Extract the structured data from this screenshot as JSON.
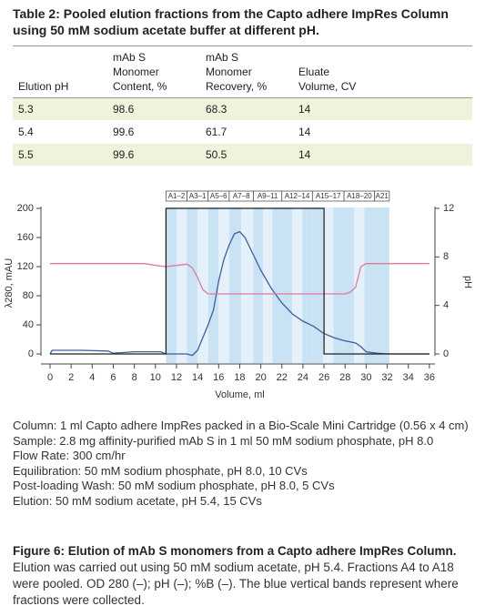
{
  "table": {
    "title": "Table 2: Pooled elution fractions from the Capto adhere ImpRes Column using 50 mM sodium acetate buffer at different pH.",
    "header": [
      "Elution pH",
      "mAb S Monomer Content, %",
      "mAb S Monomer Recovery, %",
      "Eluate Volume, CV"
    ],
    "rows": [
      [
        "5.3",
        "98.6",
        "68.3",
        "14"
      ],
      [
        "5.4",
        "99.6",
        "61.7",
        "14"
      ],
      [
        "5.5",
        "99.6",
        "50.5",
        "14"
      ]
    ]
  },
  "chart_data": {
    "type": "line",
    "xlabel": "Volume, ml",
    "ylabel": "λ280, mAU",
    "y2label": "pH",
    "xlim": [
      -1,
      36
    ],
    "xticks": [
      0,
      2,
      4,
      6,
      8,
      10,
      12,
      14,
      16,
      18,
      20,
      22,
      24,
      26,
      28,
      30,
      32,
      34,
      36
    ],
    "ylim": [
      -10,
      205
    ],
    "yticks": [
      0,
      40,
      80,
      120,
      160,
      200
    ],
    "y2lim": [
      -0.6,
      12.3
    ],
    "y2ticks": [
      0,
      4,
      8,
      12
    ],
    "fractions": [
      "A1–2",
      "A3–1",
      "A5–6",
      "A7–8",
      "A9–11",
      "A12–14",
      "A15–17",
      "A18–20",
      "A21"
    ],
    "fraction_edges": [
      11,
      13,
      15,
      17,
      19.3,
      22,
      24.9,
      27.9,
      30.8,
      32.2
    ],
    "series": [
      {
        "name": "OD 280",
        "color": "#3e5e9e",
        "x": [
          0,
          0.2,
          3,
          5.5,
          6,
          8,
          10.5,
          11,
          13,
          13.5,
          14,
          15,
          15.5,
          16,
          16.5,
          17,
          17.5,
          18,
          18.5,
          19,
          20,
          21,
          22,
          23,
          24,
          25,
          26,
          27,
          28,
          29,
          29.5,
          30,
          31,
          32,
          36
        ],
        "values": [
          0,
          5,
          5,
          4,
          1,
          3,
          3,
          0,
          0,
          -2,
          5,
          40,
          60,
          100,
          130,
          150,
          165,
          168,
          160,
          145,
          115,
          90,
          70,
          55,
          45,
          38,
          28,
          22,
          18,
          15,
          10,
          3,
          1,
          0,
          0
        ]
      },
      {
        "name": "pH",
        "color": "#e07a9a",
        "axis": "y2",
        "x": [
          0,
          9,
          10,
          11,
          12,
          13,
          13.5,
          14,
          14.5,
          15,
          28,
          28.5,
          29,
          29.5,
          30,
          36
        ],
        "values": [
          7.45,
          7.45,
          7.3,
          7.2,
          7.3,
          7.4,
          7.1,
          6.3,
          5.3,
          4.95,
          4.95,
          5.1,
          5.5,
          7.2,
          7.45,
          7.45
        ]
      },
      {
        "name": "%B",
        "color": "#222222",
        "x": [
          0,
          11,
          11,
          26,
          26,
          36
        ],
        "values": [
          0,
          0,
          200,
          200,
          0,
          0
        ]
      }
    ]
  },
  "method": [
    "Column:  1 ml Capto adhere ImpRes packed in a Bio-Scale Mini Cartridge (0.56 x 4 cm)",
    "Sample:  2.8 mg affinity-purified mAb S in 1 ml 50 mM sodium phosphate, pH 8.0",
    "Flow Rate:  300 cm/hr",
    "Equilibration:  50 mM sodium phosphate, pH 8.0, 10 CVs",
    "Post-loading Wash:  50 mM sodium phosphate, pH 8.0, 5 CVs",
    "Elution:  50 mM sodium acetate, pH 5.4, 15 CVs"
  ],
  "caption": {
    "title": "Figure 6: Elution of mAb S monomers from a Capto adhere ImpRes Column.",
    "text": "Elution was carried out using 50 mM sodium acetate, pH 5.4. Fractions A4 to A18 were pooled. OD 280 (–); pH (–); %B (–).  The blue vertical bands represent where fractions were collected."
  }
}
